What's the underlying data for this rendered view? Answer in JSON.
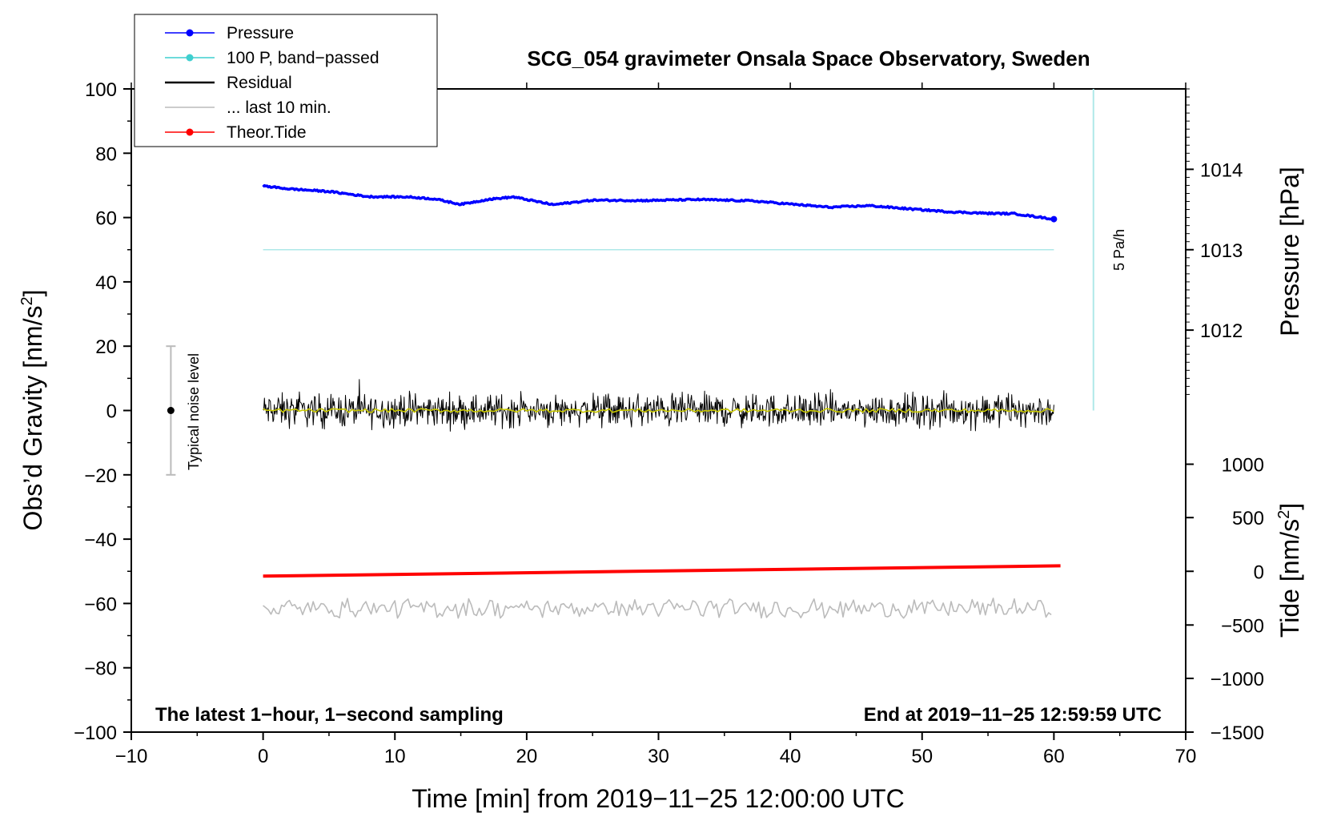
{
  "chart_data": {
    "type": "line",
    "title": "SCG_054 gravimeter Onsala Space Observatory, Sweden",
    "xlabel": "Time [min] from 2019−11−25 12:00:00 UTC",
    "ylabel_text": "Obs’d Gravity [nm/s",
    "ylabel_sup": "2",
    "ylabel_close": "]",
    "xlim": [
      -10,
      70
    ],
    "ylim": [
      -100,
      100
    ],
    "x_ticks": [
      -10,
      0,
      10,
      20,
      30,
      40,
      50,
      60,
      70
    ],
    "x_tick_labels": [
      "−10",
      "0",
      "10",
      "20",
      "30",
      "40",
      "50",
      "60",
      "70"
    ],
    "y_ticks": [
      -100,
      -80,
      -60,
      -40,
      -20,
      0,
      20,
      40,
      60,
      80,
      100
    ],
    "y_tick_labels": [
      "−100",
      "−80",
      "−60",
      "−40",
      "−20",
      "0",
      "20",
      "40",
      "60",
      "80",
      "100"
    ],
    "right_axis_pressure": {
      "label": "Pressure [hPa]",
      "ticks": [
        1012,
        1013,
        1014
      ],
      "tick_labels": [
        "1012",
        "1013",
        "1014"
      ],
      "gravity_equiv": [
        25,
        50,
        75
      ]
    },
    "right_axis_tide": {
      "label_text": "Tide [nm/s",
      "label_sup": "2",
      "label_close": "]",
      "ticks": [
        -1500,
        -1000,
        -500,
        0,
        500,
        1000
      ],
      "tick_labels": [
        "−1500",
        "−1000",
        "−500",
        "0",
        "500",
        "1000"
      ],
      "gravity_equiv": [
        -100,
        -83.3,
        -66.7,
        -50,
        -33.3,
        -16.7
      ]
    },
    "legend": [
      {
        "label": "Pressure",
        "color": "#0000ff",
        "marker": "dot"
      },
      {
        "label": "100 P, band−passed",
        "color": "#3fcfcf",
        "marker": "dot"
      },
      {
        "label": "Residual",
        "color": "#000000",
        "marker": "none"
      },
      {
        "label": "... last 10 min.",
        "color": "#bbbbbb",
        "marker": "none"
      },
      {
        "label": "Theor.Tide",
        "color": "#ff0000",
        "marker": "dot"
      }
    ],
    "series": [
      {
        "name": "Pressure",
        "color": "#0000ff",
        "x": [
          0,
          2,
          5,
          8,
          11,
          13,
          15,
          17,
          19,
          22,
          25,
          29,
          33,
          37,
          40,
          43,
          46,
          49,
          52,
          55,
          57,
          60
        ],
        "values": [
          69.8,
          68.9,
          68.1,
          66.5,
          66.4,
          65.8,
          64.1,
          65.6,
          66.4,
          64.0,
          65.4,
          65.3,
          65.6,
          65.2,
          64.2,
          63.2,
          63.7,
          62.7,
          61.8,
          61.3,
          61.2,
          59.5
        ]
      },
      {
        "name": "100 P, band−passed",
        "color": "#aee8e8",
        "x": [
          0,
          60
        ],
        "values": [
          50,
          50
        ]
      },
      {
        "name": "Theor.Tide",
        "color": "#ff0000",
        "x": [
          0,
          60.5
        ],
        "values": [
          -51.5,
          -48.3
        ]
      },
      {
        "name": "Residual",
        "color": "#000000",
        "x_range": [
          0,
          60
        ],
        "center": 0,
        "amplitude": 2.5
      },
      {
        "name": "Residual smoothed",
        "color": "#c8c800",
        "x_range": [
          0,
          60
        ],
        "center": 0,
        "amplitude": 0.6
      },
      {
        "name": "... last 10 min.",
        "color": "#bbbbbb",
        "x_range": [
          0,
          60
        ],
        "center": -61.5,
        "amplitude": 2.5
      }
    ],
    "noise_bar": {
      "label": "Typical noise level",
      "x": -7,
      "y": 0,
      "y_low": -20,
      "y_high": 20
    },
    "rate_marker": {
      "label": "5 Pa/h",
      "x": 63,
      "y_low": 0,
      "y_high": 100
    },
    "footer_left": "The latest 1−hour, 1−second sampling",
    "footer_right": "End at 2019−11−25 12:59:59 UTC"
  }
}
